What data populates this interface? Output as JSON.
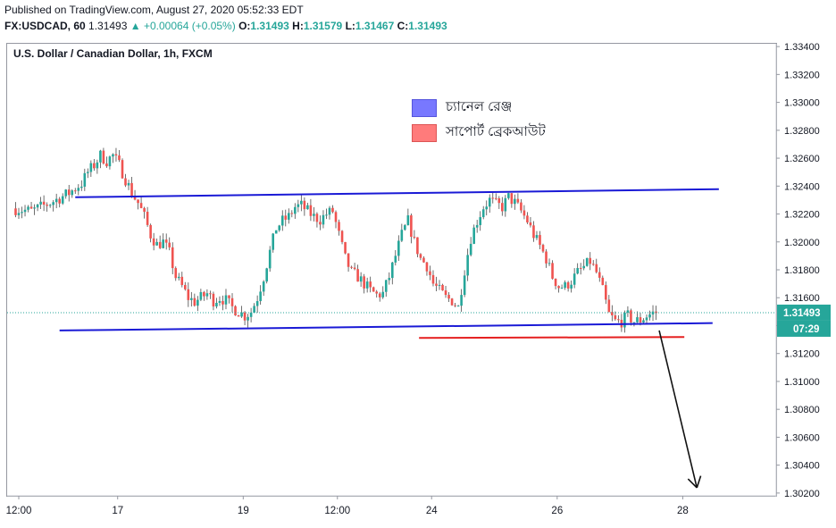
{
  "header": {
    "published": "Published on TradingView.com, August 27, 2020 05:52:33 EDT",
    "symbol_line": "FX:USDCAD, 60",
    "last": "1.31493",
    "change": "▲ +0.00064 (+0.05%)",
    "o_label": "O:",
    "o_value": "1.31493",
    "h_label": "H:",
    "h_value": "1.31579",
    "l_label": "L:",
    "l_value": "1.31467",
    "c_label": "C:",
    "c_value": "1.31493"
  },
  "colors": {
    "up": "#26a69a",
    "up_body": "#26a69a",
    "down_body": "#ef5350",
    "wick": "#4a4a4a",
    "channel_line": "#1a1ad6",
    "breakout_line": "#e52020",
    "price_tag_bg": "#26a69a",
    "timer_tag_bg": "#26a69a"
  },
  "chart_data": {
    "type": "candlestick",
    "title": "U.S. Dollar / Canadian Dollar, 1h, FXCM",
    "ylim": [
      1.3018,
      1.3342
    ],
    "y_ticks": [
      "1.33400",
      "1.33200",
      "1.33000",
      "1.32800",
      "1.32600",
      "1.32400",
      "1.32200",
      "1.32000",
      "1.31800",
      "1.31600",
      "1.31400",
      "1.31200",
      "1.31000",
      "1.30800",
      "1.30600",
      "1.30400",
      "1.30200"
    ],
    "x_ticks": [
      {
        "label": "12:00",
        "x": 0
      },
      {
        "label": "17",
        "x": 15.75
      },
      {
        "label": "19",
        "x": 35.75
      },
      {
        "label": "12:00",
        "x": 50.75
      },
      {
        "label": "24",
        "x": 65.75
      },
      {
        "label": "26",
        "x": 85.75
      },
      {
        "label": "28",
        "x": 105.75
      }
    ],
    "x_range": [
      -1.5,
      122
    ],
    "x_unit": "hours since first tick (12:00)",
    "last_price": "1.31493",
    "countdown": "07:29",
    "close_path": [
      [
        -1,
        1.3224
      ],
      [
        2,
        1.3222
      ],
      [
        5,
        1.3228
      ],
      [
        8,
        1.3235
      ],
      [
        10,
        1.3242
      ],
      [
        11,
        1.325
      ],
      [
        12,
        1.3255
      ],
      [
        13,
        1.3262
      ],
      [
        14,
        1.3258
      ],
      [
        15,
        1.3262
      ],
      [
        16,
        1.3255
      ],
      [
        17,
        1.3245
      ],
      [
        18,
        1.3235
      ],
      [
        19,
        1.3228
      ],
      [
        20,
        1.3218
      ],
      [
        21,
        1.3205
      ],
      [
        22,
        1.3198
      ],
      [
        23,
        1.32
      ],
      [
        24,
        1.3192
      ],
      [
        25,
        1.3175
      ],
      [
        26,
        1.3168
      ],
      [
        27,
        1.316
      ],
      [
        28,
        1.3157
      ],
      [
        29,
        1.316
      ],
      [
        30,
        1.3163
      ],
      [
        31,
        1.3158
      ],
      [
        32,
        1.316
      ],
      [
        33,
        1.3158
      ],
      [
        34,
        1.3153
      ],
      [
        35,
        1.315
      ],
      [
        36,
        1.3147
      ],
      [
        37,
        1.315
      ],
      [
        38,
        1.316
      ],
      [
        39,
        1.3175
      ],
      [
        40,
        1.3193
      ],
      [
        41,
        1.321
      ],
      [
        42,
        1.3215
      ],
      [
        43,
        1.3218
      ],
      [
        44,
        1.3225
      ],
      [
        45,
        1.3226
      ],
      [
        46,
        1.3222
      ],
      [
        47,
        1.3218
      ],
      [
        48,
        1.3216
      ],
      [
        49,
        1.322
      ],
      [
        50,
        1.3222
      ],
      [
        51,
        1.3205
      ],
      [
        52,
        1.3188
      ],
      [
        53,
        1.3178
      ],
      [
        54,
        1.3175
      ],
      [
        55,
        1.317
      ],
      [
        56,
        1.3165
      ],
      [
        57,
        1.3162
      ],
      [
        58,
        1.3163
      ],
      [
        59,
        1.3175
      ],
      [
        60,
        1.319
      ],
      [
        61,
        1.3205
      ],
      [
        62,
        1.3215
      ],
      [
        63,
        1.32
      ],
      [
        64,
        1.3188
      ],
      [
        65,
        1.3183
      ],
      [
        66,
        1.317
      ],
      [
        67,
        1.3165
      ],
      [
        68,
        1.316
      ],
      [
        69,
        1.3158
      ],
      [
        70,
        1.3153
      ],
      [
        71,
        1.318
      ],
      [
        72,
        1.3203
      ],
      [
        73,
        1.3215
      ],
      [
        74,
        1.3225
      ],
      [
        75,
        1.323
      ],
      [
        76,
        1.3227
      ],
      [
        77,
        1.3225
      ],
      [
        78,
        1.3232
      ],
      [
        79,
        1.3228
      ],
      [
        80,
        1.3222
      ],
      [
        81,
        1.3215
      ],
      [
        82,
        1.3205
      ],
      [
        83,
        1.3197
      ],
      [
        84,
        1.3188
      ],
      [
        85,
        1.3175
      ],
      [
        86,
        1.3168
      ],
      [
        87,
        1.3168
      ],
      [
        88,
        1.3172
      ],
      [
        89,
        1.3178
      ],
      [
        90,
        1.3182
      ],
      [
        91,
        1.3186
      ],
      [
        92,
        1.3178
      ],
      [
        93,
        1.3165
      ],
      [
        94,
        1.3148
      ],
      [
        95,
        1.3143
      ],
      [
        96,
        1.3143
      ],
      [
        97,
        1.3147
      ],
      [
        98,
        1.3143
      ],
      [
        99,
        1.3144
      ],
      [
        100,
        1.3147
      ],
      [
        101,
        1.3149
      ],
      [
        101.5,
        1.31493
      ]
    ],
    "annotations": {
      "channel_top": {
        "x": [
          9,
          111.5
        ],
        "y": [
          1.3232,
          1.32378
        ]
      },
      "channel_bottom": {
        "x": [
          6.5,
          110.5
        ],
        "y": [
          1.31365,
          1.31418
        ]
      },
      "support_breakout": {
        "x": [
          63.75,
          106
        ],
        "y": [
          1.31312,
          1.31318
        ]
      },
      "arrow": {
        "from": [
          102,
          1.31365
        ],
        "to": [
          108,
          1.30238
        ]
      }
    },
    "legend": [
      {
        "label": "চ্যানেল রেঞ্জ",
        "color": "#7878ff",
        "border": "#5555dd"
      },
      {
        "label": "সাপোর্ট ব্রেকআউট",
        "color": "#ff7b7b",
        "border": "#dd5555"
      }
    ]
  }
}
